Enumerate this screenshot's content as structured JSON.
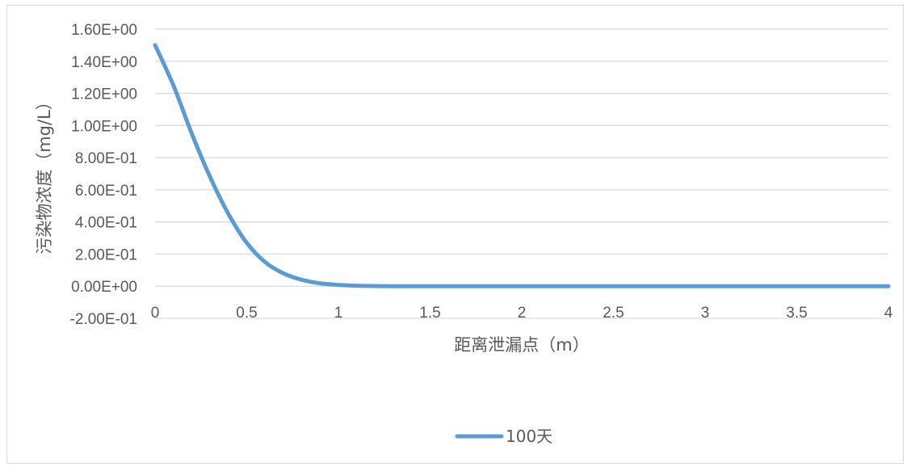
{
  "chart_data": {
    "type": "line",
    "title": "",
    "xlabel": "距离泄漏点（m）",
    "ylabel": "污染物浓度（mg/L）",
    "xlim": [
      0,
      4
    ],
    "ylim": [
      -0.2,
      1.6
    ],
    "x_ticks": [
      "0",
      "0.5",
      "1",
      "1.5",
      "2",
      "2.5",
      "3",
      "3.5",
      "4"
    ],
    "y_ticks": [
      "-2.00E-01",
      "0.00E+00",
      "2.00E-01",
      "4.00E-01",
      "6.00E-01",
      "8.00E-01",
      "1.00E+00",
      "1.20E+00",
      "1.40E+00",
      "1.60E+00"
    ],
    "grid": "horizontal",
    "legend_position": "bottom",
    "series": [
      {
        "name": "100天",
        "color": "#5b9bd5",
        "x": [
          0,
          0.1,
          0.2,
          0.3,
          0.4,
          0.5,
          0.6,
          0.7,
          0.8,
          0.9,
          1.0,
          1.1,
          1.2,
          1.3,
          1.5,
          2.0,
          2.5,
          3.0,
          3.5,
          4.0
        ],
        "y": [
          1.5,
          1.25,
          0.95,
          0.68,
          0.45,
          0.27,
          0.15,
          0.08,
          0.04,
          0.018,
          0.008,
          0.003,
          0.001,
          0.0,
          0.0,
          0.0,
          0.0,
          0.0,
          0.0,
          0.0
        ]
      }
    ]
  }
}
